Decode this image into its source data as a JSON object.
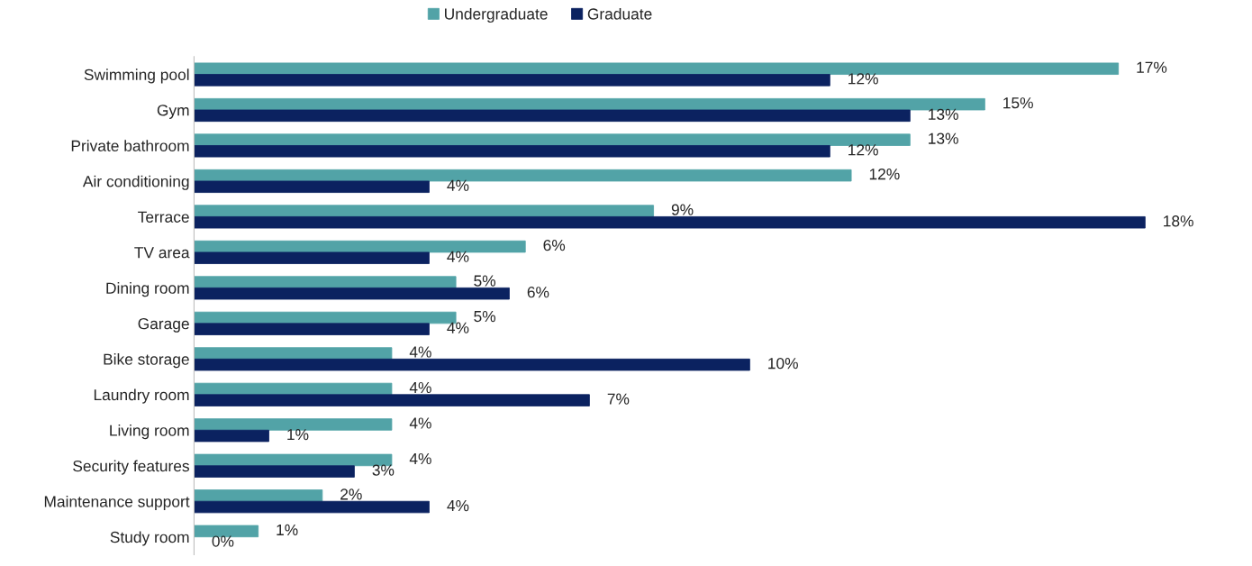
{
  "chart_data": {
    "type": "bar",
    "orientation": "horizontal",
    "categories": [
      "Swimming pool",
      "Gym",
      "Private bathroom",
      "Air conditioning",
      "Terrace",
      "TV area",
      "Dining room",
      "Garage",
      "Bike storage",
      "Laundry room",
      "Living room",
      "Security features",
      "Maintenance support",
      "Study room"
    ],
    "series": [
      {
        "name": "Undergraduate",
        "color": "#52a3a7",
        "values": [
          17.3,
          14.8,
          13.4,
          12.3,
          8.6,
          6.2,
          4.9,
          4.9,
          3.7,
          3.7,
          3.7,
          3.7,
          2.4,
          1.2
        ],
        "value_labels": [
          "17%",
          "15%",
          "13%",
          "12%",
          "9%",
          "6%",
          "5%",
          "5%",
          "4%",
          "4%",
          "4%",
          "4%",
          "2%",
          "1%"
        ]
      },
      {
        "name": "Graduate",
        "color": "#0b2260",
        "values": [
          11.9,
          13.4,
          11.9,
          4.4,
          17.8,
          4.4,
          5.9,
          4.4,
          10.4,
          7.4,
          1.4,
          3.0,
          4.4,
          0
        ],
        "value_labels": [
          "12%",
          "13%",
          "12%",
          "4%",
          "18%",
          "4%",
          "6%",
          "4%",
          "10%",
          "7%",
          "1%",
          "3%",
          "4%",
          "0%"
        ]
      }
    ],
    "legend": "top",
    "grid": false
  }
}
